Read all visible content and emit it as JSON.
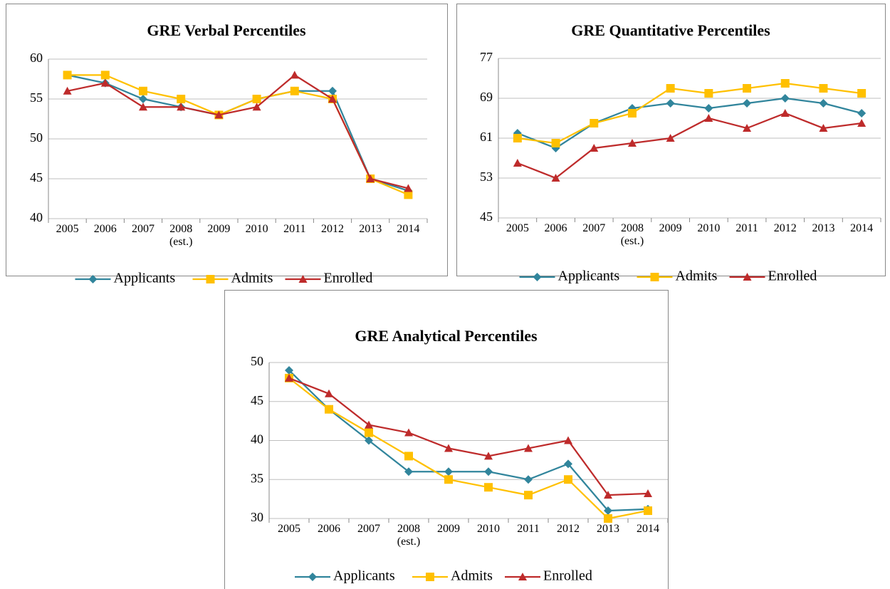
{
  "chart_data": [
    {
      "type": "line",
      "title": "GRE Verbal Percentiles",
      "categories": [
        "2005",
        "2006",
        "2007",
        "2008\n(est.)",
        "2009",
        "2010",
        "2011",
        "2012",
        "2013",
        "2014"
      ],
      "series": [
        {
          "name": "Applicants",
          "color": "#31859c",
          "marker": "diamond",
          "values": [
            58,
            57,
            55,
            54,
            53,
            55,
            56,
            56,
            45,
            43.5
          ]
        },
        {
          "name": "Admits",
          "color": "#ffc000",
          "marker": "square",
          "values": [
            58,
            58,
            56,
            55,
            53,
            55,
            56,
            55,
            45,
            43
          ]
        },
        {
          "name": "Enrolled",
          "color": "#be2b2b",
          "marker": "triangle",
          "values": [
            56,
            57,
            54,
            54,
            53,
            54,
            58,
            55,
            45,
            43.8
          ]
        }
      ],
      "ylim": [
        40,
        60
      ],
      "yticks": [
        40,
        45,
        50,
        55,
        60
      ],
      "grid": true,
      "legend": "bottom"
    },
    {
      "type": "line",
      "title": "GRE Quantitative Percentiles",
      "categories": [
        "2005",
        "2006",
        "2007",
        "2008\n(est.)",
        "2009",
        "2010",
        "2011",
        "2012",
        "2013",
        "2014"
      ],
      "series": [
        {
          "name": "Applicants",
          "color": "#31859c",
          "marker": "diamond",
          "values": [
            62,
            59,
            64,
            67,
            68,
            67,
            68,
            69,
            68,
            66
          ]
        },
        {
          "name": "Admits",
          "color": "#ffc000",
          "marker": "square",
          "values": [
            61,
            60,
            64,
            66,
            71,
            70,
            71,
            72,
            71,
            70
          ]
        },
        {
          "name": "Enrolled",
          "color": "#be2b2b",
          "marker": "triangle",
          "values": [
            56,
            53,
            59,
            60,
            61,
            65,
            63,
            66,
            63,
            64
          ]
        }
      ],
      "ylim": [
        45,
        77
      ],
      "yticks": [
        45,
        53,
        61,
        69,
        77
      ],
      "grid": true,
      "legend": "bottom"
    },
    {
      "type": "line",
      "title": "GRE Analytical Percentiles",
      "categories": [
        "2005",
        "2006",
        "2007",
        "2008\n(est.)",
        "2009",
        "2010",
        "2011",
        "2012",
        "2013",
        "2014"
      ],
      "series": [
        {
          "name": "Applicants",
          "color": "#31859c",
          "marker": "diamond",
          "values": [
            49,
            44,
            40,
            36,
            36,
            36,
            35,
            37,
            31,
            31.2
          ]
        },
        {
          "name": "Admits",
          "color": "#ffc000",
          "marker": "square",
          "values": [
            48,
            44,
            41,
            38,
            35,
            34,
            33,
            35,
            30,
            31
          ]
        },
        {
          "name": "Enrolled",
          "color": "#be2b2b",
          "marker": "triangle",
          "values": [
            48,
            46,
            42,
            41,
            39,
            38,
            39,
            40,
            33,
            33.2
          ]
        }
      ],
      "ylim": [
        30,
        50
      ],
      "yticks": [
        30,
        35,
        40,
        45,
        50
      ],
      "grid": true,
      "legend": "bottom"
    }
  ]
}
